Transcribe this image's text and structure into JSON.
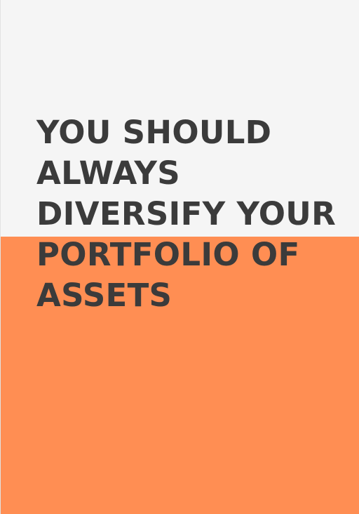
{
  "poster": {
    "headline_lines": [
      "YOU SHOULD",
      "ALWAYS",
      "DIVERSIFY YOUR",
      "PORTFOLIO OF",
      "ASSETS"
    ]
  },
  "colors": {
    "top_background": "#f5f5f5",
    "bottom_background": "#ff8e53",
    "text": "#3b3b3b"
  }
}
